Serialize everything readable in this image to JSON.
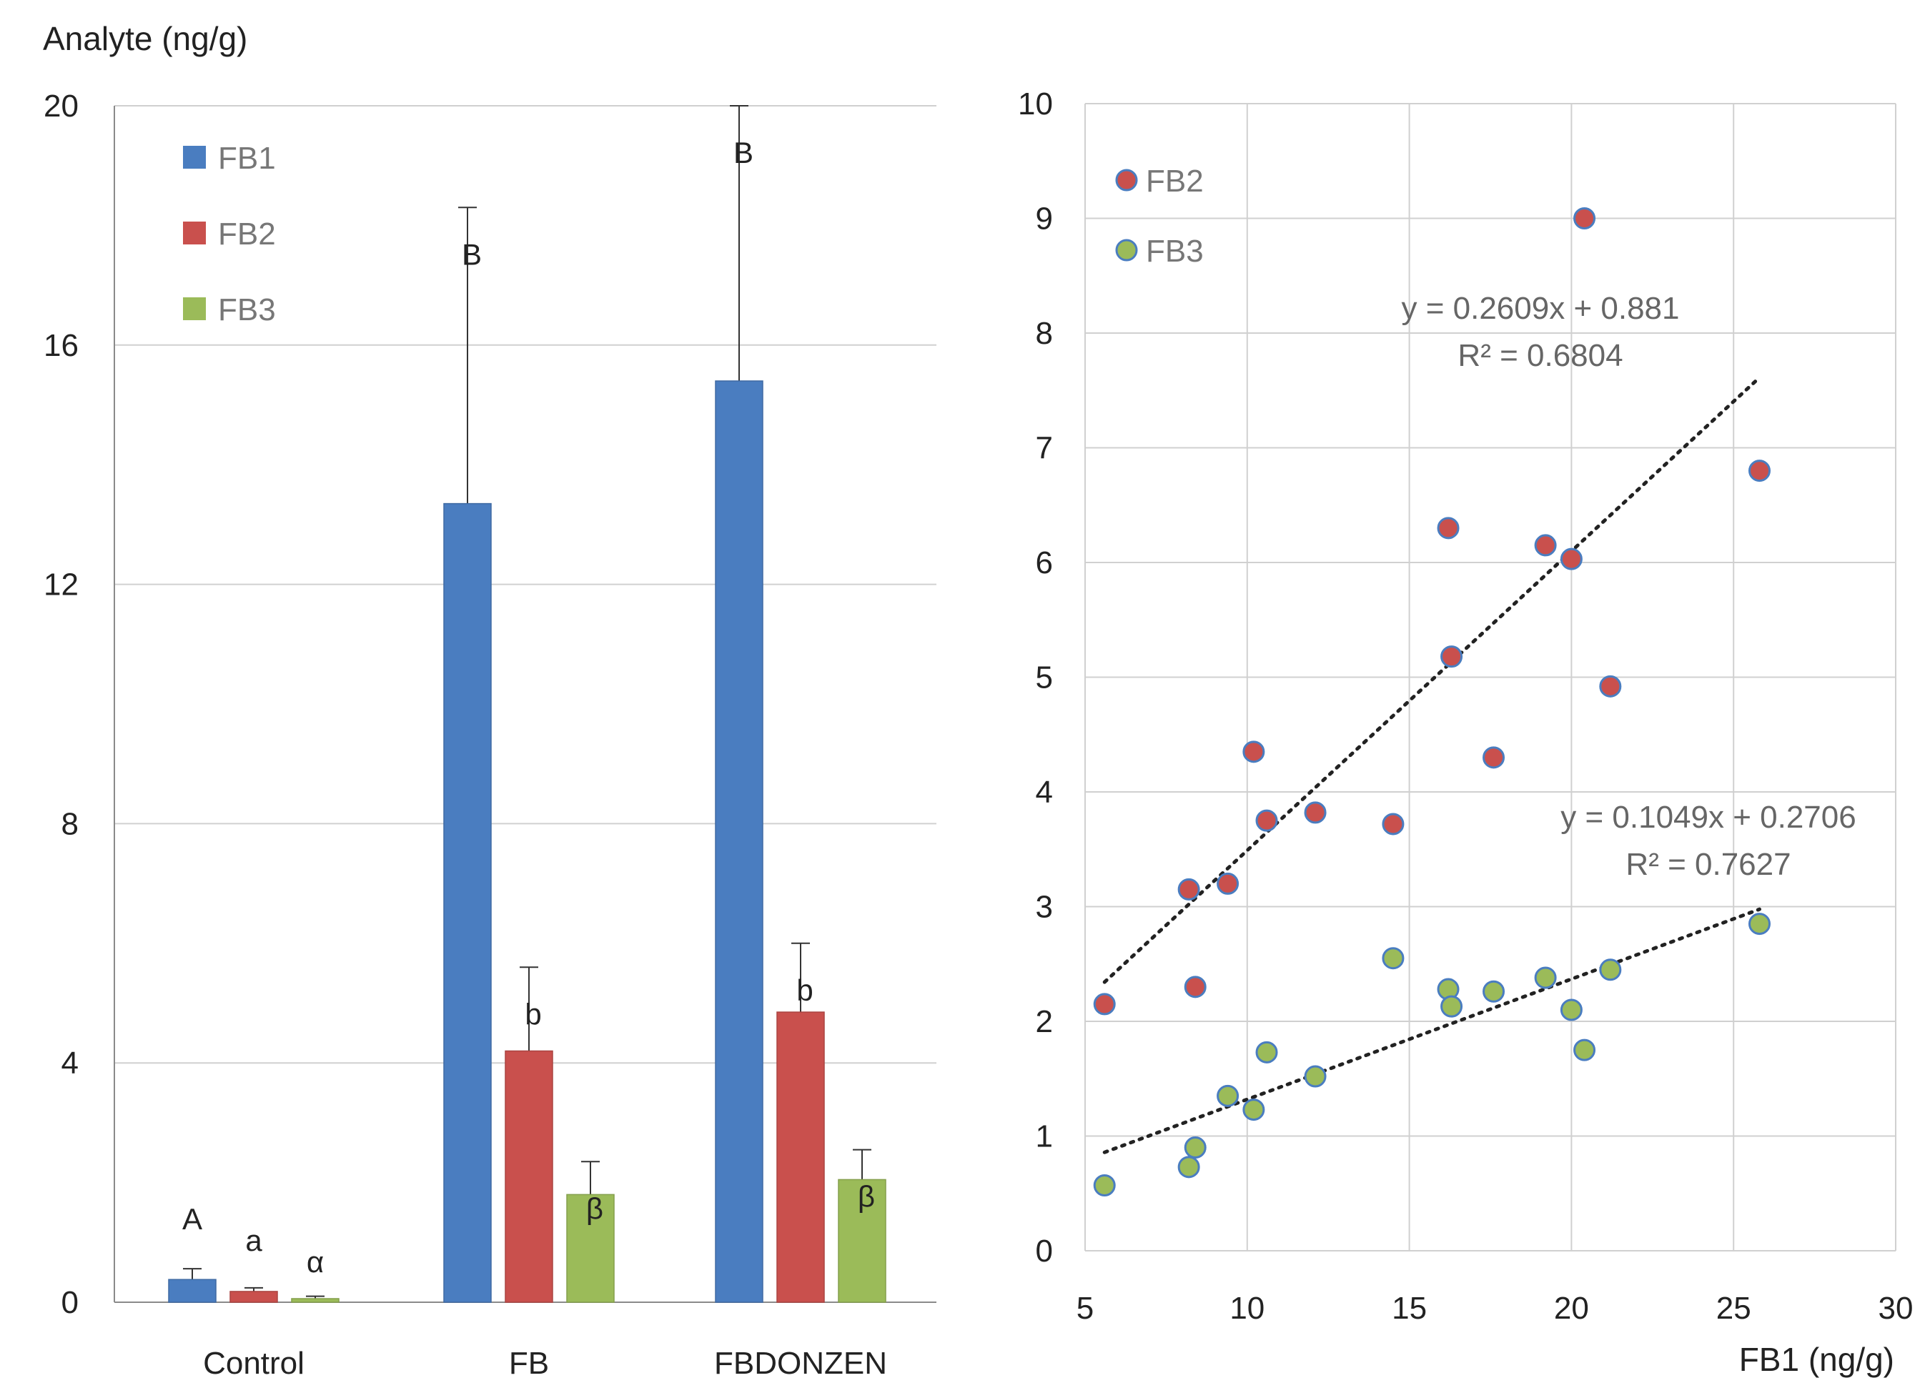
{
  "chart_data": [
    {
      "type": "bar",
      "ylabel": "Analyte (ng/g)",
      "ylim": [
        0,
        20
      ],
      "yticks": [
        "0",
        "4",
        "8",
        "12",
        "16",
        "20"
      ],
      "grid": true,
      "legend_position": "top-left",
      "categories": [
        "Control",
        "FB",
        "FBDONZEN"
      ],
      "series": [
        {
          "name": "FB1",
          "color": "#4a7dc0",
          "values": [
            0.38,
            13.35,
            15.4
          ],
          "errors": [
            0.18,
            4.95,
            4.6
          ],
          "labels": [
            "A",
            "B",
            "B"
          ]
        },
        {
          "name": "FB2",
          "color": "#c9504d",
          "values": [
            0.18,
            4.2,
            4.85
          ],
          "errors": [
            0.06,
            1.4,
            1.15
          ],
          "labels": [
            "a",
            "b",
            "b"
          ]
        },
        {
          "name": "FB3",
          "color": "#9bbb59",
          "values": [
            0.06,
            1.8,
            2.05
          ],
          "errors": [
            0.04,
            0.55,
            0.5
          ],
          "labels": [
            "α",
            "β",
            "β"
          ]
        }
      ]
    },
    {
      "type": "scatter",
      "xlabel": "FB1 (ng/g)",
      "ylabel": "",
      "xlim": [
        5,
        30
      ],
      "ylim": [
        0,
        10
      ],
      "xticks": [
        "5",
        "10",
        "15",
        "20",
        "25",
        "30"
      ],
      "yticks": [
        "0",
        "1",
        "2",
        "3",
        "4",
        "5",
        "6",
        "7",
        "8",
        "9",
        "10"
      ],
      "grid": true,
      "legend_position": "top-left",
      "series": [
        {
          "name": "FB2",
          "color": "#c9504d",
          "edge": "#4a7dc0",
          "x": [
            5.6,
            8.2,
            8.4,
            9.4,
            10.2,
            10.6,
            12.1,
            14.5,
            16.2,
            16.3,
            17.6,
            19.2,
            20.0,
            20.4,
            21.2,
            25.8
          ],
          "y": [
            2.15,
            3.15,
            2.3,
            3.2,
            4.35,
            3.75,
            3.82,
            3.72,
            6.3,
            5.18,
            4.3,
            6.15,
            6.03,
            9.0,
            4.92,
            6.8
          ],
          "trendline": {
            "slope": 0.2609,
            "intercept": 0.881,
            "x_range": [
              5.6,
              25.8
            ],
            "equation": "y = 0.2609x + 0.881",
            "r2": "R² = 0.6804"
          }
        },
        {
          "name": "FB3",
          "color": "#9bbb59",
          "edge": "#4a7dc0",
          "x": [
            5.6,
            8.2,
            8.4,
            9.4,
            10.2,
            10.6,
            12.1,
            14.5,
            16.2,
            16.3,
            17.6,
            19.2,
            20.0,
            20.4,
            21.2,
            25.8
          ],
          "y": [
            0.57,
            0.73,
            0.9,
            1.35,
            1.23,
            1.73,
            1.52,
            2.55,
            2.28,
            2.13,
            2.26,
            2.38,
            2.1,
            1.75,
            2.45,
            2.85
          ],
          "trendline": {
            "slope": 0.1049,
            "intercept": 0.2706,
            "x_range": [
              5.6,
              25.8
            ],
            "equation": "y = 0.1049x + 0.2706",
            "r2": "R² = 0.7627"
          }
        }
      ]
    }
  ]
}
